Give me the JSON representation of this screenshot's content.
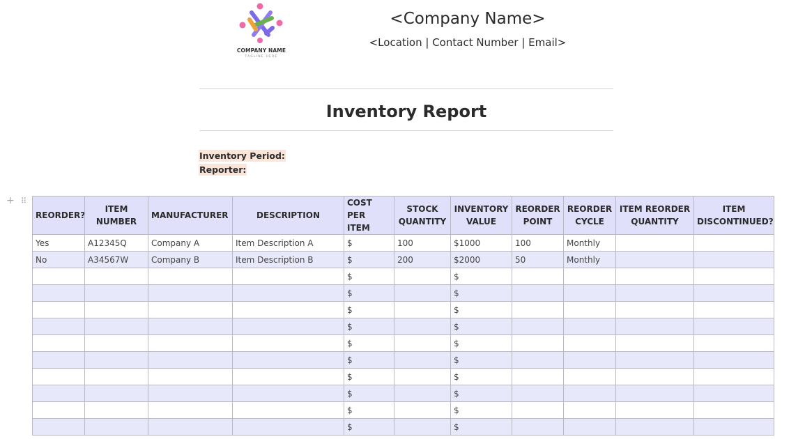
{
  "header": {
    "logo": {
      "icon": "people-circle-logo-icon",
      "name": "COMPANY NAME",
      "tagline": "TAGLINE HERE",
      "colors": [
        "#ec6aa8",
        "#7b6ae8",
        "#6ab04c",
        "#f0a23a"
      ]
    },
    "company_name": "<Company Name>",
    "contact_line": "<Location | Contact Number | Email>"
  },
  "report": {
    "title": "Inventory Report",
    "period_label": "Inventory Period:",
    "reporter_label": "Reporter:"
  },
  "table": {
    "columns": [
      "REORDER?",
      "ITEM NUMBER",
      "MANUFACTURER",
      "DESCRIPTION",
      "COST PER ITEM",
      "STOCK QUANTITY",
      "INVENTORY VALUE",
      "REORDER POINT",
      "REORDER CYCLE",
      "ITEM REORDER QUANTITY",
      "ITEM DISCONTINUED?"
    ],
    "rows": [
      [
        "Yes",
        "A12345Q",
        "Company A",
        "Item Description A",
        "$",
        "100",
        "$1000",
        "100",
        "Monthly",
        "",
        ""
      ],
      [
        "No",
        "A34567W",
        "Company B",
        "Item Description B",
        "$",
        "200",
        "$2000",
        "50",
        "Monthly",
        "",
        ""
      ],
      [
        "",
        "",
        "",
        "",
        "$",
        "",
        "$",
        "",
        "",
        "",
        ""
      ],
      [
        "",
        "",
        "",
        "",
        "$",
        "",
        "$",
        "",
        "",
        "",
        ""
      ],
      [
        "",
        "",
        "",
        "",
        "$",
        "",
        "$",
        "",
        "",
        "",
        ""
      ],
      [
        "",
        "",
        "",
        "",
        "$",
        "",
        "$",
        "",
        "",
        "",
        ""
      ],
      [
        "",
        "",
        "",
        "",
        "$",
        "",
        "$",
        "",
        "",
        "",
        ""
      ],
      [
        "",
        "",
        "",
        "",
        "$",
        "",
        "$",
        "",
        "",
        "",
        ""
      ],
      [
        "",
        "",
        "",
        "",
        "$",
        "",
        "$",
        "",
        "",
        "",
        ""
      ],
      [
        "",
        "",
        "",
        "",
        "$",
        "",
        "$",
        "",
        "",
        "",
        ""
      ],
      [
        "",
        "",
        "",
        "",
        "$",
        "",
        "$",
        "",
        "",
        "",
        ""
      ],
      [
        "",
        "",
        "",
        "",
        "$",
        "",
        "$",
        "",
        "",
        "",
        ""
      ]
    ],
    "row_tools": {
      "add_icon": "plus-icon",
      "drag_icon": "drag-handle-icon"
    }
  }
}
